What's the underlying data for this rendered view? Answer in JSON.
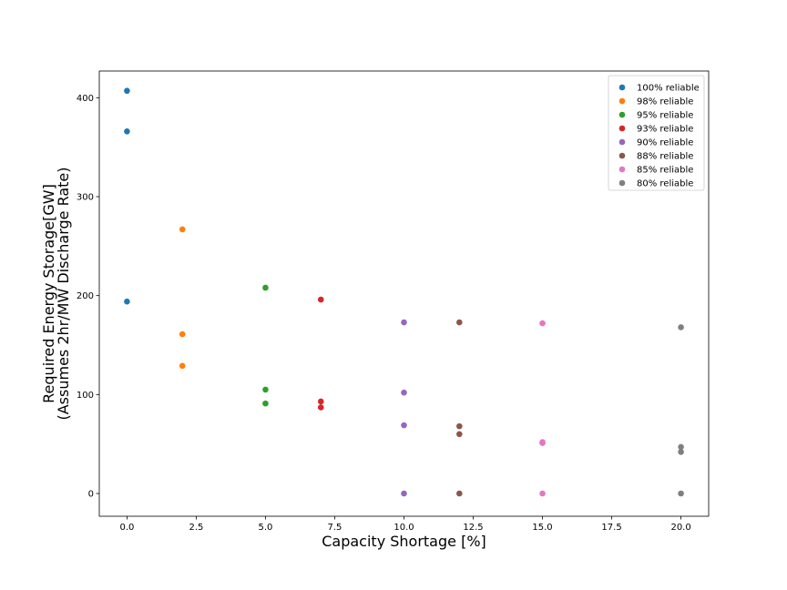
{
  "chart_data": {
    "type": "scatter",
    "title": "",
    "xlabel": "Capacity Shortage [%]",
    "ylabel_lines": [
      "Required Energy Storage[GW]",
      "(Assumes 2hr/MW Discharge Rate)"
    ],
    "xlim": [
      -1,
      21
    ],
    "ylim": [
      -23,
      427
    ],
    "xticks": [
      0.0,
      2.5,
      5.0,
      7.5,
      10.0,
      12.5,
      15.0,
      17.5,
      20.0
    ],
    "xtick_labels": [
      "0.0",
      "2.5",
      "5.0",
      "7.5",
      "10.0",
      "12.5",
      "15.0",
      "17.5",
      "20.0"
    ],
    "yticks": [
      0,
      100,
      200,
      300,
      400
    ],
    "ytick_labels": [
      "0",
      "100",
      "200",
      "300",
      "400"
    ],
    "grid": false,
    "legend_position": "top-right",
    "series": [
      {
        "name": "100% reliable",
        "color": "#1f77b4",
        "x": [
          0,
          0,
          0
        ],
        "y": [
          407,
          366,
          194
        ]
      },
      {
        "name": "98% reliable",
        "color": "#ff7f0e",
        "x": [
          2,
          2,
          2
        ],
        "y": [
          267,
          161,
          129
        ]
      },
      {
        "name": "95% reliable",
        "color": "#2ca02c",
        "x": [
          5,
          5,
          5
        ],
        "y": [
          208,
          105,
          91
        ]
      },
      {
        "name": "93% reliable",
        "color": "#d62728",
        "x": [
          7,
          7,
          7
        ],
        "y": [
          196,
          93,
          87
        ]
      },
      {
        "name": "90% reliable",
        "color": "#9467bd",
        "x": [
          10,
          10,
          10,
          10
        ],
        "y": [
          173,
          102,
          69,
          0
        ]
      },
      {
        "name": "88% reliable",
        "color": "#8c564b",
        "x": [
          12,
          12,
          12,
          12
        ],
        "y": [
          173,
          68,
          60,
          0
        ]
      },
      {
        "name": "85% reliable",
        "color": "#e377c2",
        "x": [
          15,
          15,
          15,
          15
        ],
        "y": [
          172,
          52,
          51,
          0
        ]
      },
      {
        "name": "80% reliable",
        "color": "#7f7f7f",
        "x": [
          20,
          20,
          20,
          20
        ],
        "y": [
          168,
          47,
          42,
          0
        ]
      }
    ]
  }
}
